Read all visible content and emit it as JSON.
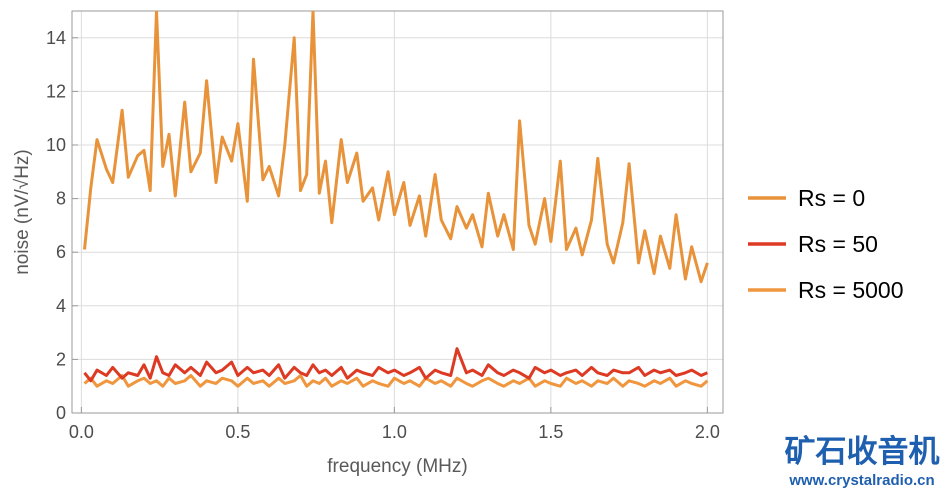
{
  "chart_data": {
    "type": "line",
    "title": "",
    "xlabel": "frequency (MHz)",
    "ylabel": "noise (nV/√Hz)",
    "xlim": [
      -0.03,
      2.05
    ],
    "ylim": [
      0,
      15
    ],
    "x_ticks": [
      0.0,
      0.5,
      1.0,
      1.5,
      2.0
    ],
    "x_tick_labels": [
      "0.0",
      "0.5",
      "1.0",
      "1.5",
      "2.0"
    ],
    "y_ticks": [
      0,
      2,
      4,
      6,
      8,
      10,
      12,
      14
    ],
    "y_tick_labels": [
      "0",
      "2",
      "4",
      "6",
      "8",
      "10",
      "12",
      "14"
    ],
    "grid": true,
    "legend_position": "right",
    "series": [
      {
        "name": "Rs = 0",
        "color": "#e8923a",
        "x": [
          0.01,
          0.03,
          0.05,
          0.08,
          0.1,
          0.13,
          0.15,
          0.18,
          0.2,
          0.22,
          0.24,
          0.26,
          0.28,
          0.3,
          0.33,
          0.35,
          0.38,
          0.4,
          0.43,
          0.45,
          0.48,
          0.5,
          0.53,
          0.55,
          0.58,
          0.6,
          0.63,
          0.65,
          0.68,
          0.7,
          0.72,
          0.74,
          0.76,
          0.78,
          0.8,
          0.83,
          0.85,
          0.88,
          0.9,
          0.93,
          0.95,
          0.98,
          1.0,
          1.03,
          1.05,
          1.08,
          1.1,
          1.13,
          1.15,
          1.18,
          1.2,
          1.23,
          1.25,
          1.28,
          1.3,
          1.33,
          1.35,
          1.38,
          1.4,
          1.43,
          1.45,
          1.48,
          1.5,
          1.53,
          1.55,
          1.58,
          1.6,
          1.63,
          1.65,
          1.68,
          1.7,
          1.73,
          1.75,
          1.78,
          1.8,
          1.83,
          1.85,
          1.88,
          1.9,
          1.93,
          1.95,
          1.98,
          2.0
        ],
        "values": [
          6.1,
          8.4,
          10.2,
          9.1,
          8.6,
          11.3,
          8.8,
          9.6,
          9.8,
          8.3,
          15.0,
          9.2,
          10.4,
          8.1,
          11.6,
          9.0,
          9.7,
          12.4,
          8.6,
          10.3,
          9.4,
          10.8,
          7.9,
          13.2,
          8.7,
          9.2,
          8.1,
          10.0,
          14.0,
          8.3,
          8.9,
          15.0,
          8.2,
          9.4,
          7.1,
          10.2,
          8.6,
          9.7,
          7.9,
          8.4,
          7.2,
          9.0,
          7.4,
          8.6,
          7.0,
          8.1,
          6.6,
          8.9,
          7.2,
          6.5,
          7.7,
          6.9,
          7.4,
          6.2,
          8.2,
          6.6,
          7.4,
          6.1,
          10.9,
          7.0,
          6.3,
          8.0,
          6.4,
          9.4,
          6.1,
          6.9,
          5.9,
          7.2,
          9.5,
          6.3,
          5.6,
          7.1,
          9.3,
          5.6,
          6.8,
          5.2,
          6.6,
          5.4,
          7.4,
          5.0,
          6.2,
          4.9,
          5.6
        ]
      },
      {
        "name": "Rs = 50",
        "color": "#dd3a24",
        "x": [
          0.01,
          0.03,
          0.05,
          0.08,
          0.1,
          0.13,
          0.15,
          0.18,
          0.2,
          0.22,
          0.24,
          0.26,
          0.28,
          0.3,
          0.33,
          0.35,
          0.38,
          0.4,
          0.43,
          0.45,
          0.48,
          0.5,
          0.53,
          0.55,
          0.58,
          0.6,
          0.63,
          0.65,
          0.68,
          0.7,
          0.72,
          0.74,
          0.76,
          0.78,
          0.8,
          0.83,
          0.85,
          0.88,
          0.9,
          0.93,
          0.95,
          0.98,
          1.0,
          1.03,
          1.05,
          1.08,
          1.1,
          1.13,
          1.15,
          1.18,
          1.2,
          1.23,
          1.25,
          1.28,
          1.3,
          1.33,
          1.35,
          1.38,
          1.4,
          1.43,
          1.45,
          1.48,
          1.5,
          1.53,
          1.55,
          1.58,
          1.6,
          1.63,
          1.65,
          1.68,
          1.7,
          1.73,
          1.75,
          1.78,
          1.8,
          1.83,
          1.85,
          1.88,
          1.9,
          1.93,
          1.95,
          1.98,
          2.0
        ],
        "values": [
          1.5,
          1.2,
          1.6,
          1.4,
          1.7,
          1.3,
          1.5,
          1.4,
          1.8,
          1.3,
          2.1,
          1.5,
          1.4,
          1.8,
          1.5,
          1.7,
          1.4,
          1.9,
          1.5,
          1.6,
          1.9,
          1.4,
          1.7,
          1.5,
          1.6,
          1.4,
          1.8,
          1.3,
          1.7,
          1.5,
          1.4,
          1.8,
          1.5,
          1.6,
          1.4,
          1.7,
          1.3,
          1.6,
          1.5,
          1.4,
          1.7,
          1.5,
          1.6,
          1.4,
          1.5,
          1.7,
          1.3,
          1.6,
          1.5,
          1.4,
          2.4,
          1.5,
          1.6,
          1.4,
          1.8,
          1.5,
          1.4,
          1.6,
          1.5,
          1.3,
          1.7,
          1.5,
          1.6,
          1.4,
          1.5,
          1.6,
          1.4,
          1.7,
          1.5,
          1.4,
          1.6,
          1.5,
          1.5,
          1.7,
          1.4,
          1.6,
          1.5,
          1.6,
          1.4,
          1.5,
          1.6,
          1.4,
          1.5
        ]
      },
      {
        "name": "Rs = 5000",
        "color": "#f0963e",
        "x": [
          0.01,
          0.03,
          0.05,
          0.08,
          0.1,
          0.13,
          0.15,
          0.18,
          0.2,
          0.22,
          0.24,
          0.26,
          0.28,
          0.3,
          0.33,
          0.35,
          0.38,
          0.4,
          0.43,
          0.45,
          0.48,
          0.5,
          0.53,
          0.55,
          0.58,
          0.6,
          0.63,
          0.65,
          0.68,
          0.7,
          0.72,
          0.74,
          0.76,
          0.78,
          0.8,
          0.83,
          0.85,
          0.88,
          0.9,
          0.93,
          0.95,
          0.98,
          1.0,
          1.03,
          1.05,
          1.08,
          1.1,
          1.13,
          1.15,
          1.18,
          1.2,
          1.23,
          1.25,
          1.28,
          1.3,
          1.33,
          1.35,
          1.38,
          1.4,
          1.43,
          1.45,
          1.48,
          1.5,
          1.53,
          1.55,
          1.58,
          1.6,
          1.63,
          1.65,
          1.68,
          1.7,
          1.73,
          1.75,
          1.78,
          1.8,
          1.83,
          1.85,
          1.88,
          1.9,
          1.93,
          1.95,
          1.98,
          2.0
        ],
        "values": [
          1.1,
          1.3,
          1.0,
          1.2,
          1.1,
          1.4,
          1.0,
          1.2,
          1.3,
          1.1,
          1.2,
          1.0,
          1.3,
          1.1,
          1.2,
          1.4,
          1.0,
          1.2,
          1.1,
          1.3,
          1.2,
          1.0,
          1.3,
          1.1,
          1.2,
          1.0,
          1.3,
          1.1,
          1.2,
          1.4,
          1.0,
          1.2,
          1.1,
          1.3,
          1.0,
          1.2,
          1.1,
          1.3,
          1.0,
          1.2,
          1.1,
          1.0,
          1.3,
          1.1,
          1.2,
          1.0,
          1.3,
          1.1,
          1.2,
          1.0,
          1.3,
          1.1,
          1.0,
          1.2,
          1.3,
          1.1,
          1.0,
          1.2,
          1.1,
          1.3,
          1.0,
          1.2,
          1.1,
          1.0,
          1.3,
          1.1,
          1.2,
          1.0,
          1.2,
          1.1,
          1.3,
          1.0,
          1.2,
          1.1,
          1.0,
          1.2,
          1.1,
          1.3,
          1.0,
          1.2,
          1.1,
          1.0,
          1.2
        ]
      }
    ]
  },
  "watermark": {
    "cn_text": "矿石收音机",
    "url_text": "www.crystalradio.cn",
    "color": "#1f5fb0"
  }
}
